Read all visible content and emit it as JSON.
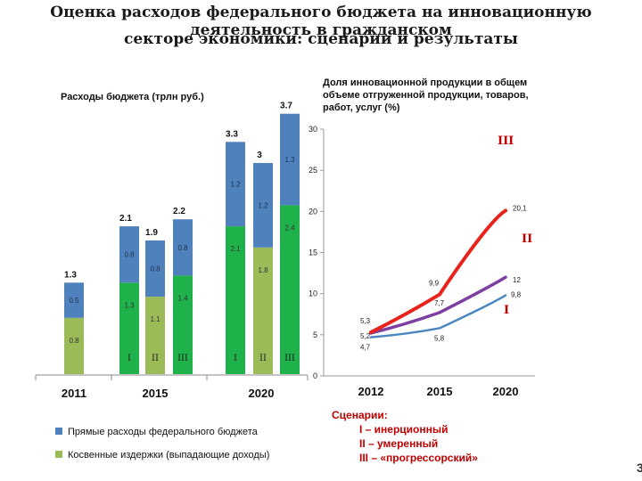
{
  "title": {
    "line1": "Оценка расходов федерального бюджета на инновационную деятельность в гражданском",
    "line2": "секторе экономики: сценарии и результаты"
  },
  "chart_data": [
    {
      "type": "bar",
      "stacked": true,
      "title": "Расходы бюджета (трлн руб.)",
      "groups": [
        "2011",
        "2015",
        "2020"
      ],
      "bars": [
        {
          "group": "2011",
          "scenario": "",
          "direct": 0.5,
          "indirect": 0.8,
          "total": "1.3",
          "direct_label": "0.5",
          "indirect_label": "0.8"
        },
        {
          "group": "2015",
          "scenario": "I",
          "direct": 0.8,
          "indirect": 1.3,
          "total": "2.1",
          "direct_label": "0.8",
          "indirect_label": "1.3"
        },
        {
          "group": "2015",
          "scenario": "II",
          "direct": 0.8,
          "indirect": 1.1,
          "total": "1.9",
          "direct_label": "0.8",
          "indirect_label": "1.1"
        },
        {
          "group": "2015",
          "scenario": "III",
          "direct": 0.8,
          "indirect": 1.4,
          "total": "2.2",
          "direct_label": "0.8",
          "indirect_label": "1.4"
        },
        {
          "group": "2020",
          "scenario": "I",
          "direct": 1.2,
          "indirect": 2.1,
          "total": "3.3",
          "direct_label": "1.2",
          "indirect_label": "2.1"
        },
        {
          "group": "2020",
          "scenario": "II",
          "direct": 1.2,
          "indirect": 1.8,
          "total": "3",
          "direct_label": "1.2",
          "indirect_label": "1.8"
        },
        {
          "group": "2020",
          "scenario": "III",
          "direct": 1.3,
          "indirect": 2.4,
          "total": "3.7",
          "direct_label": "1.3",
          "indirect_label": "2.4"
        }
      ],
      "series": [
        {
          "key": "direct",
          "name": "Прямые расходы федерального бюджета",
          "color": "#4f81bd"
        },
        {
          "key": "indirect",
          "name": "Косвенные издержки (выпадающие доходы)",
          "color": "#9bbb59"
        }
      ],
      "indirect_color_alt": "#1fb24a",
      "ylim": [
        0,
        3.7
      ]
    },
    {
      "type": "line",
      "title": "Доля инновационной продукции в общем объеме отгруженной продукции, товаров, работ, услуг (%)",
      "title_lines": [
        "Доля инновационной продукции в общем",
        "объеме отгруженной продукции, товаров,",
        "работ, услуг (%)"
      ],
      "x": [
        "2012",
        "2015",
        "2020"
      ],
      "ylim": [
        0,
        30
      ],
      "yticks": [
        "0",
        "5",
        "10",
        "15",
        "20",
        "25",
        "30"
      ],
      "series": [
        {
          "name": "I",
          "values": [
            4.7,
            5.8,
            9.8
          ],
          "labels": [
            "4,7",
            "5,8",
            "9,8"
          ],
          "color": "#4a86c0"
        },
        {
          "name": "II",
          "values": [
            5.2,
            7.7,
            12
          ],
          "labels": [
            "5,2",
            "7,7",
            "12"
          ],
          "color": "#7e3fa3"
        },
        {
          "name": "III",
          "values": [
            5.3,
            9.9,
            20.1
          ],
          "labels": [
            "5,3",
            "9,9",
            "20,1"
          ],
          "color": "#e8231b"
        }
      ]
    }
  ],
  "scenarios": {
    "heading": "Сценарии:",
    "items": [
      "I – инерционный",
      "II – умеренный",
      "III – «прогрессорский»"
    ],
    "color": "#c00000"
  },
  "page_number": "3"
}
